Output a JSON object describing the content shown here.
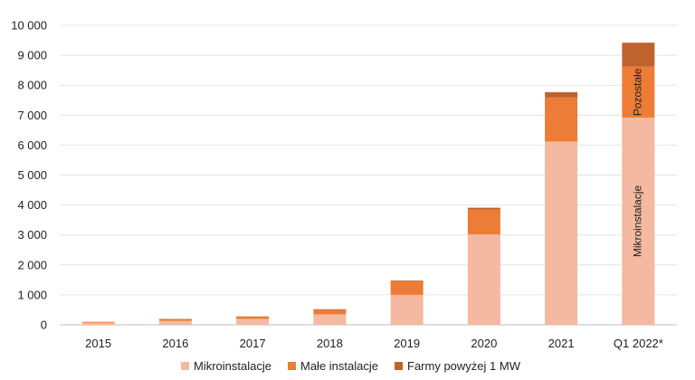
{
  "chart_data": {
    "type": "bar",
    "stacked": true,
    "categories": [
      "2015",
      "2016",
      "2017",
      "2018",
      "2019",
      "2020",
      "2021",
      "Q1 2022*"
    ],
    "series": [
      {
        "name": "Mikroinstalacje",
        "color": "#f4b9a0",
        "values": [
          70,
          130,
          200,
          350,
          1000,
          3020,
          6120,
          6920
        ]
      },
      {
        "name": "Małe instalacje",
        "color": "#ec7c36",
        "values": [
          30,
          60,
          70,
          150,
          460,
          830,
          1470,
          1700
        ]
      },
      {
        "name": "Farmy powyżej 1 MW",
        "color": "#c0622e",
        "values": [
          0,
          10,
          10,
          20,
          20,
          60,
          180,
          800
        ]
      }
    ],
    "ylim": [
      0,
      10000
    ],
    "yticks": [
      0,
      1000,
      2000,
      3000,
      4000,
      5000,
      6000,
      7000,
      8000,
      9000,
      10000
    ],
    "ytick_labels": [
      "0",
      "1 000",
      "2 000",
      "3 000",
      "4 000",
      "5 000",
      "6 000",
      "7 000",
      "8 000",
      "9 000",
      "10 000"
    ],
    "grid": true,
    "legend_position": "bottom",
    "annotations": [
      {
        "category": "Q1 2022*",
        "series": "Mikroinstalacje",
        "text": "Mikroinstalacje"
      },
      {
        "category": "Q1 2022*",
        "series": "Małe instalacje",
        "text": "Pozostałe"
      }
    ]
  }
}
